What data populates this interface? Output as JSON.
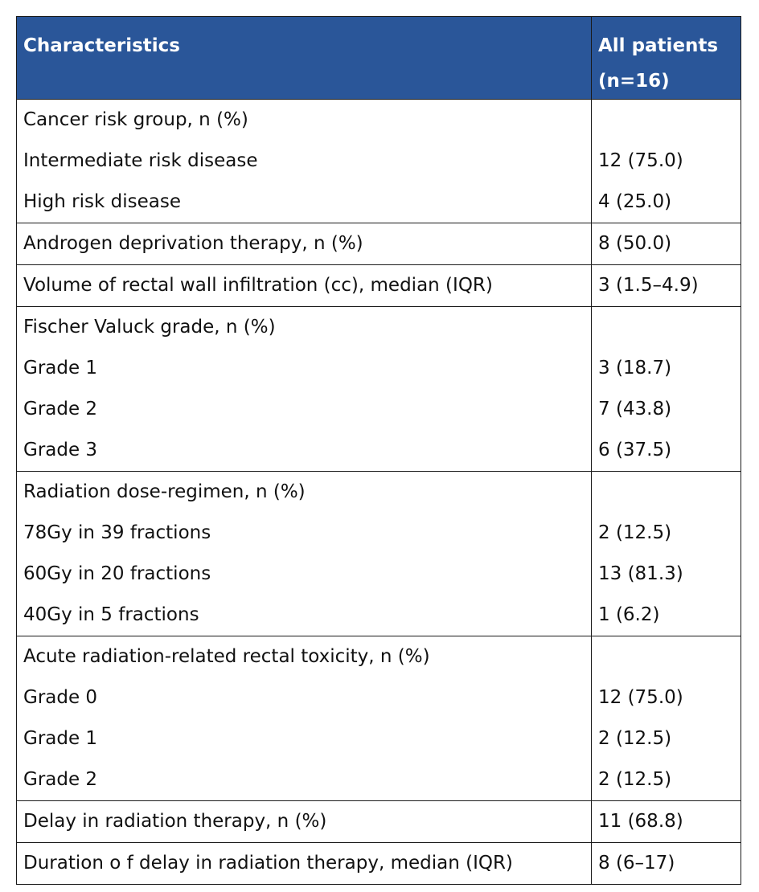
{
  "table": {
    "header": {
      "characteristics": "Characteristics",
      "all_patients_line1": "All patients",
      "all_patients_line2": "(n=16)"
    },
    "sections": [
      {
        "heading": "Cancer risk group, n (%)",
        "rows": [
          {
            "label": "Intermediate risk disease",
            "value": "12 (75.0)"
          },
          {
            "label": "High risk disease",
            "value": "4 (25.0)"
          }
        ]
      },
      {
        "single": {
          "label": "Androgen deprivation therapy, n (%)",
          "value": "8 (50.0)"
        }
      },
      {
        "single": {
          "label": "Volume of rectal wall infiltration (cc), median (IQR)",
          "value": "3 (1.5–4.9)"
        }
      },
      {
        "heading": "Fischer Valuck grade, n (%)",
        "rows": [
          {
            "label": "Grade 1",
            "value": "3 (18.7)"
          },
          {
            "label": "Grade 2",
            "value": "7 (43.8)"
          },
          {
            "label": "Grade 3",
            "value": "6 (37.5)"
          }
        ]
      },
      {
        "heading": "Radiation dose-regimen, n (%)",
        "rows": [
          {
            "label": "78Gy in 39 fractions",
            "value": "2 (12.5)"
          },
          {
            "label": "60Gy in 20 fractions",
            "value": "13 (81.3)"
          },
          {
            "label": "40Gy in 5 fractions",
            "value": "1 (6.2)"
          }
        ]
      },
      {
        "heading": "Acute radiation-related rectal toxicity, n (%)",
        "rows": [
          {
            "label": "Grade 0",
            "value": "12 (75.0)"
          },
          {
            "label": "Grade 1",
            "value": "2 (12.5)"
          },
          {
            "label": "Grade 2",
            "value": "2 (12.5)"
          }
        ]
      },
      {
        "single": {
          "label": "Delay in radiation therapy, n (%)",
          "value": "11 (68.8)"
        }
      },
      {
        "single": {
          "label": "Duration o f delay in radiation therapy, median (IQR)",
          "value": "8 (6–17)"
        }
      }
    ]
  },
  "colors": {
    "header_background": "#2a5699",
    "header_text": "#ffffff",
    "border": "#1a1a1a"
  }
}
